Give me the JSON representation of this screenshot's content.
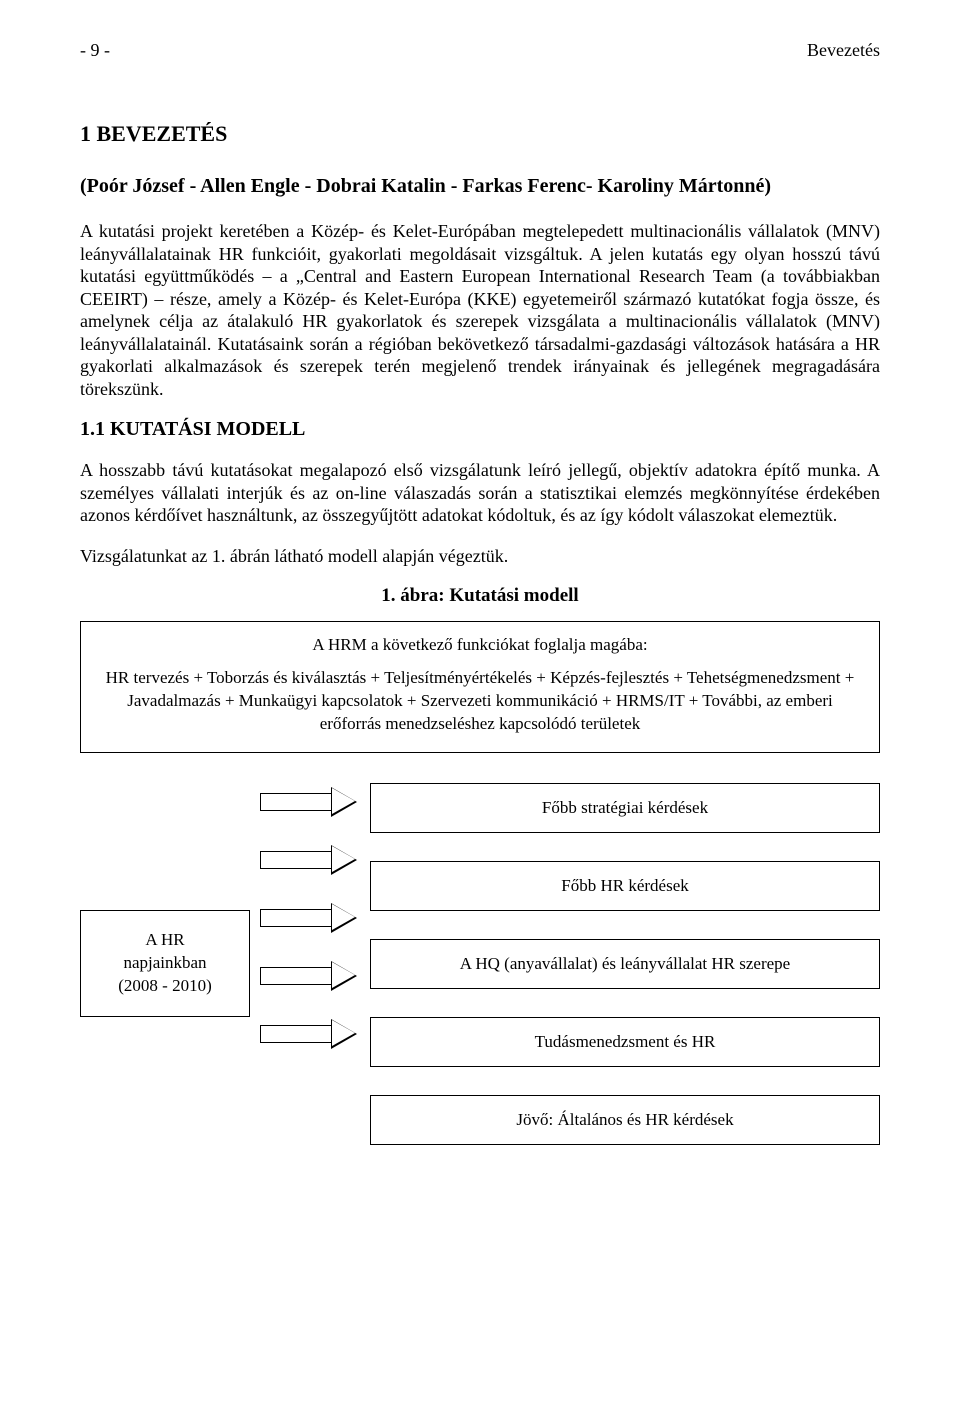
{
  "header": {
    "page_num": "- 9 -",
    "section": "Bevezetés"
  },
  "h1": "1   BEVEZETÉS",
  "authors": "(Poór József - Allen Engle - Dobrai Katalin - Farkas Ferenc- Karoliny Mártonné)",
  "p1": "A kutatási projekt keretében a Közép- és Kelet-Európában megtelepedett multinacionális vállalatok (MNV) leányvállalatainak HR funkcióit, gyakorlati megoldásait vizsgáltuk. A jelen kutatás egy olyan hosszú távú kutatási együttműködés – a „Central and Eastern European International Research Team (a továbbiakban CEEIRT) – része, amely a Közép- és Kelet-Európa (KKE) egyetemeiről származó kutatókat fogja össze, és amelynek célja az átalakuló HR gyakorlatok és szerepek vizsgálata a multinacionális vállalatok (MNV) leányvállalatainál. Kutatásaink során a régióban bekövetkező társadalmi-gazdasági változások hatására a HR gyakorlati alkalmazások és szerepek terén megjelenő trendek irányainak és jellegének megragadására törekszünk.",
  "h2": "1.1   KUTATÁSI MODELL",
  "p2": "A hosszabb távú kutatásokat megalapozó első vizsgálatunk leíró jellegű, objektív adatokra építő munka. A személyes vállalati interjúk és az on-line válaszadás során a statisztikai elemzés megkönnyítése érdekében azonos kérdőívet használtunk, az összegyűjtött adatokat kódoltuk, és az így kódolt válaszokat elemeztük.",
  "p3": "Vizsgálatunkat az 1. ábrán látható modell alapján végeztük.",
  "fig_caption": "1.   ábra: Kutatási modell",
  "hrm": {
    "title": "A HRM a következő funkciókat foglalja magába:",
    "body": "HR tervezés + Toborzás és kiválasztás + Teljesítményértékelés + Képzés-fejlesztés + Tehetségmenedzsment + Javadalmazás + Munkaügyi kapcsolatok + Szervezeti kommunikáció + HRMS/IT + További, az emberi erőforrás menedzseléshez kapcsolódó területek"
  },
  "diagram": {
    "left_box_l1": "A HR",
    "left_box_l2": "napjainkban",
    "left_box_l3": "(2008 - 2010)",
    "boxes": [
      "Főbb stratégiai kérdések",
      "Főbb HR kérdések",
      "A HQ (anyavállalat) és leányvállalat HR szerepe",
      "Tudásmenedzsment és HR",
      "Jövő: Általános és HR kérdések"
    ]
  }
}
